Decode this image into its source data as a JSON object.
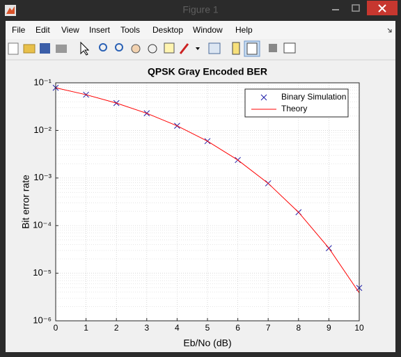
{
  "window": {
    "title": "Figure 1",
    "menu": [
      "File",
      "Edit",
      "View",
      "Insert",
      "Tools",
      "Desktop",
      "Window",
      "Help"
    ]
  },
  "chart_data": {
    "type": "line",
    "title": "QPSK Gray Encoded BER",
    "xlabel": "Eb/No (dB)",
    "ylabel": "Bit error rate",
    "x": [
      0,
      1,
      2,
      3,
      4,
      5,
      6,
      7,
      8,
      9,
      10
    ],
    "series": [
      {
        "name": "Binary Simulation",
        "color": "#1f1fa8",
        "marker": "x",
        "line": false,
        "values": [
          0.0786,
          0.0563,
          0.0375,
          0.0229,
          0.0125,
          0.00595,
          0.00239,
          0.000773,
          0.000191,
          3.36e-05,
          4.9e-06
        ]
      },
      {
        "name": "Theory",
        "color": "#ff0000",
        "marker": null,
        "line": true,
        "values": [
          0.0786,
          0.0563,
          0.0375,
          0.0229,
          0.0125,
          0.00595,
          0.00239,
          0.000773,
          0.000191,
          3.36e-05,
          3.87e-06
        ]
      }
    ],
    "xlim": [
      0,
      10
    ],
    "xticks": [
      0,
      1,
      2,
      3,
      4,
      5,
      6,
      7,
      8,
      9,
      10
    ],
    "ylim": [
      1e-06,
      0.1
    ],
    "yscale": "log",
    "yticks": [
      {
        "value": 1e-06,
        "label": "10⁻⁶"
      },
      {
        "value": 1e-05,
        "label": "10⁻⁵"
      },
      {
        "value": 0.0001,
        "label": "10⁻⁴"
      },
      {
        "value": 0.001,
        "label": "10⁻³"
      },
      {
        "value": 0.01,
        "label": "10⁻²"
      },
      {
        "value": 0.1,
        "label": "10⁻¹"
      }
    ],
    "grid": true,
    "minor_grid": true,
    "legend": "upper right"
  }
}
